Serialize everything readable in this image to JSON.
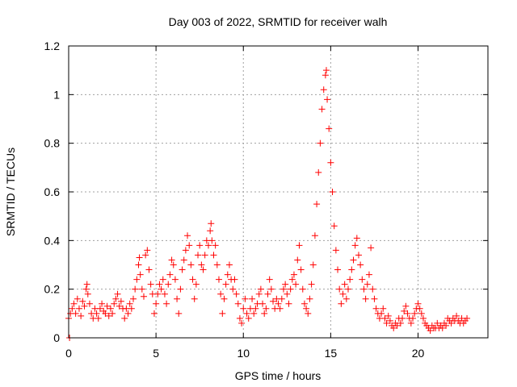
{
  "chart_data": {
    "type": "scatter",
    "title": "Day 003 of 2022, SRMTID for receiver walh",
    "xlabel": "GPS time / hours",
    "ylabel": "SRMTID / TECUs",
    "xlim": [
      0,
      24
    ],
    "ylim": [
      0,
      1.2
    ],
    "x_ticks": [
      0,
      5,
      10,
      15,
      20
    ],
    "x_tick_labels": [
      "0",
      "5",
      "10",
      "15",
      "20"
    ],
    "y_ticks": [
      0,
      0.2,
      0.4,
      0.6,
      0.8,
      1.0,
      1.2
    ],
    "y_tick_labels": [
      "0",
      "0.2",
      "0.4",
      "0.6",
      "0.8",
      "1",
      "1.2"
    ],
    "grid": true,
    "marker": "+",
    "color": "#ff0000",
    "series": [
      {
        "name": "SRMTID",
        "points": [
          [
            0.0,
            0.08
          ],
          [
            0.05,
            0.0
          ],
          [
            0.1,
            0.1
          ],
          [
            0.2,
            0.12
          ],
          [
            0.3,
            0.14
          ],
          [
            0.4,
            0.1
          ],
          [
            0.5,
            0.16
          ],
          [
            0.6,
            0.12
          ],
          [
            0.7,
            0.09
          ],
          [
            0.8,
            0.15
          ],
          [
            0.9,
            0.13
          ],
          [
            1.0,
            0.2
          ],
          [
            1.05,
            0.22
          ],
          [
            1.1,
            0.18
          ],
          [
            1.2,
            0.14
          ],
          [
            1.3,
            0.1
          ],
          [
            1.4,
            0.08
          ],
          [
            1.5,
            0.12
          ],
          [
            1.6,
            0.1
          ],
          [
            1.7,
            0.08
          ],
          [
            1.8,
            0.12
          ],
          [
            1.9,
            0.14
          ],
          [
            2.0,
            0.11
          ],
          [
            2.1,
            0.1
          ],
          [
            2.2,
            0.13
          ],
          [
            2.3,
            0.09
          ],
          [
            2.4,
            0.12
          ],
          [
            2.5,
            0.1
          ],
          [
            2.6,
            0.14
          ],
          [
            2.7,
            0.16
          ],
          [
            2.8,
            0.18
          ],
          [
            2.9,
            0.13
          ],
          [
            3.0,
            0.15
          ],
          [
            3.1,
            0.12
          ],
          [
            3.2,
            0.08
          ],
          [
            3.3,
            0.12
          ],
          [
            3.4,
            0.1
          ],
          [
            3.5,
            0.14
          ],
          [
            3.6,
            0.12
          ],
          [
            3.7,
            0.16
          ],
          [
            3.8,
            0.2
          ],
          [
            3.9,
            0.24
          ],
          [
            4.0,
            0.3
          ],
          [
            4.05,
            0.33
          ],
          [
            4.1,
            0.26
          ],
          [
            4.2,
            0.2
          ],
          [
            4.3,
            0.17
          ],
          [
            4.4,
            0.34
          ],
          [
            4.5,
            0.36
          ],
          [
            4.6,
            0.28
          ],
          [
            4.7,
            0.22
          ],
          [
            4.8,
            0.18
          ],
          [
            4.9,
            0.1
          ],
          [
            5.0,
            0.14
          ],
          [
            5.1,
            0.18
          ],
          [
            5.2,
            0.22
          ],
          [
            5.3,
            0.2
          ],
          [
            5.4,
            0.24
          ],
          [
            5.5,
            0.18
          ],
          [
            5.6,
            0.14
          ],
          [
            5.7,
            0.22
          ],
          [
            5.8,
            0.26
          ],
          [
            5.9,
            0.32
          ],
          [
            6.0,
            0.3
          ],
          [
            6.1,
            0.24
          ],
          [
            6.2,
            0.16
          ],
          [
            6.3,
            0.1
          ],
          [
            6.4,
            0.2
          ],
          [
            6.5,
            0.28
          ],
          [
            6.6,
            0.32
          ],
          [
            6.7,
            0.36
          ],
          [
            6.8,
            0.42
          ],
          [
            6.9,
            0.38
          ],
          [
            7.0,
            0.3
          ],
          [
            7.1,
            0.24
          ],
          [
            7.2,
            0.16
          ],
          [
            7.3,
            0.22
          ],
          [
            7.4,
            0.34
          ],
          [
            7.5,
            0.38
          ],
          [
            7.6,
            0.3
          ],
          [
            7.7,
            0.28
          ],
          [
            7.8,
            0.34
          ],
          [
            7.9,
            0.4
          ],
          [
            8.0,
            0.38
          ],
          [
            8.1,
            0.44
          ],
          [
            8.15,
            0.47
          ],
          [
            8.2,
            0.4
          ],
          [
            8.3,
            0.34
          ],
          [
            8.4,
            0.38
          ],
          [
            8.5,
            0.3
          ],
          [
            8.6,
            0.24
          ],
          [
            8.7,
            0.18
          ],
          [
            8.8,
            0.1
          ],
          [
            8.9,
            0.16
          ],
          [
            9.0,
            0.22
          ],
          [
            9.1,
            0.26
          ],
          [
            9.2,
            0.3
          ],
          [
            9.3,
            0.24
          ],
          [
            9.4,
            0.2
          ],
          [
            9.5,
            0.24
          ],
          [
            9.6,
            0.18
          ],
          [
            9.7,
            0.14
          ],
          [
            9.8,
            0.08
          ],
          [
            9.9,
            0.06
          ],
          [
            10.0,
            0.12
          ],
          [
            10.1,
            0.16
          ],
          [
            10.2,
            0.1
          ],
          [
            10.3,
            0.08
          ],
          [
            10.4,
            0.12
          ],
          [
            10.5,
            0.16
          ],
          [
            10.6,
            0.1
          ],
          [
            10.7,
            0.12
          ],
          [
            10.8,
            0.14
          ],
          [
            10.9,
            0.18
          ],
          [
            11.0,
            0.2
          ],
          [
            11.1,
            0.14
          ],
          [
            11.2,
            0.1
          ],
          [
            11.3,
            0.12
          ],
          [
            11.4,
            0.18
          ],
          [
            11.5,
            0.24
          ],
          [
            11.6,
            0.2
          ],
          [
            11.7,
            0.15
          ],
          [
            11.8,
            0.12
          ],
          [
            11.9,
            0.16
          ],
          [
            12.0,
            0.14
          ],
          [
            12.1,
            0.12
          ],
          [
            12.2,
            0.16
          ],
          [
            12.3,
            0.2
          ],
          [
            12.4,
            0.22
          ],
          [
            12.5,
            0.18
          ],
          [
            12.6,
            0.14
          ],
          [
            12.7,
            0.2
          ],
          [
            12.8,
            0.24
          ],
          [
            12.9,
            0.26
          ],
          [
            13.0,
            0.22
          ],
          [
            13.1,
            0.32
          ],
          [
            13.2,
            0.38
          ],
          [
            13.3,
            0.28
          ],
          [
            13.4,
            0.2
          ],
          [
            13.5,
            0.14
          ],
          [
            13.6,
            0.12
          ],
          [
            13.7,
            0.1
          ],
          [
            13.8,
            0.16
          ],
          [
            13.9,
            0.22
          ],
          [
            14.0,
            0.3
          ],
          [
            14.1,
            0.42
          ],
          [
            14.2,
            0.55
          ],
          [
            14.3,
            0.68
          ],
          [
            14.4,
            0.8
          ],
          [
            14.5,
            0.94
          ],
          [
            14.6,
            1.02
          ],
          [
            14.7,
            1.08
          ],
          [
            14.75,
            1.1
          ],
          [
            14.8,
            0.98
          ],
          [
            14.9,
            0.86
          ],
          [
            15.0,
            0.72
          ],
          [
            15.1,
            0.6
          ],
          [
            15.2,
            0.46
          ],
          [
            15.3,
            0.36
          ],
          [
            15.4,
            0.28
          ],
          [
            15.5,
            0.2
          ],
          [
            15.6,
            0.14
          ],
          [
            15.7,
            0.18
          ],
          [
            15.8,
            0.22
          ],
          [
            15.9,
            0.16
          ],
          [
            16.0,
            0.2
          ],
          [
            16.1,
            0.24
          ],
          [
            16.2,
            0.28
          ],
          [
            16.3,
            0.32
          ],
          [
            16.4,
            0.38
          ],
          [
            16.5,
            0.41
          ],
          [
            16.6,
            0.34
          ],
          [
            16.7,
            0.3
          ],
          [
            16.8,
            0.24
          ],
          [
            16.9,
            0.2
          ],
          [
            17.0,
            0.16
          ],
          [
            17.1,
            0.22
          ],
          [
            17.2,
            0.26
          ],
          [
            17.3,
            0.37
          ],
          [
            17.4,
            0.2
          ],
          [
            17.5,
            0.16
          ],
          [
            17.6,
            0.12
          ],
          [
            17.7,
            0.1
          ],
          [
            17.8,
            0.08
          ],
          [
            17.9,
            0.1
          ],
          [
            18.0,
            0.12
          ],
          [
            18.1,
            0.08
          ],
          [
            18.2,
            0.06
          ],
          [
            18.3,
            0.09
          ],
          [
            18.4,
            0.07
          ],
          [
            18.5,
            0.05
          ],
          [
            18.6,
            0.04
          ],
          [
            18.7,
            0.06
          ],
          [
            18.8,
            0.05
          ],
          [
            18.9,
            0.08
          ],
          [
            19.0,
            0.06
          ],
          [
            19.1,
            0.08
          ],
          [
            19.2,
            0.11
          ],
          [
            19.3,
            0.13
          ],
          [
            19.4,
            0.1
          ],
          [
            19.5,
            0.08
          ],
          [
            19.6,
            0.06
          ],
          [
            19.7,
            0.08
          ],
          [
            19.8,
            0.1
          ],
          [
            19.9,
            0.12
          ],
          [
            20.0,
            0.14
          ],
          [
            20.1,
            0.12
          ],
          [
            20.2,
            0.1
          ],
          [
            20.3,
            0.08
          ],
          [
            20.4,
            0.06
          ],
          [
            20.5,
            0.05
          ],
          [
            20.6,
            0.04
          ],
          [
            20.7,
            0.03
          ],
          [
            20.8,
            0.05
          ],
          [
            20.9,
            0.04
          ],
          [
            21.0,
            0.04
          ],
          [
            21.1,
            0.06
          ],
          [
            21.2,
            0.04
          ],
          [
            21.3,
            0.05
          ],
          [
            21.4,
            0.04
          ],
          [
            21.5,
            0.06
          ],
          [
            21.6,
            0.05
          ],
          [
            21.7,
            0.08
          ],
          [
            21.8,
            0.07
          ],
          [
            21.9,
            0.06
          ],
          [
            22.0,
            0.08
          ],
          [
            22.1,
            0.07
          ],
          [
            22.2,
            0.09
          ],
          [
            22.3,
            0.07
          ],
          [
            22.4,
            0.06
          ],
          [
            22.5,
            0.08
          ],
          [
            22.6,
            0.06
          ],
          [
            22.7,
            0.07
          ],
          [
            22.8,
            0.08
          ]
        ]
      }
    ]
  }
}
